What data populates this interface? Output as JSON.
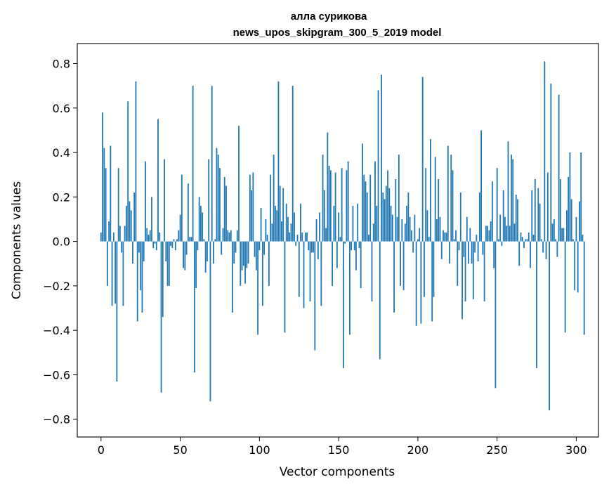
{
  "chart_data": {
    "type": "bar",
    "title": "алла сурикова",
    "subtitle": "news_upos_skipgram_300_5_2019 model",
    "xlabel": "Vector components",
    "ylabel": "Components values",
    "xlim": [
      -15,
      314
    ],
    "ylim": [
      -0.88,
      0.89
    ],
    "xticks": [
      0,
      50,
      100,
      150,
      200,
      250,
      300
    ],
    "xtick_labels": [
      "0",
      "50",
      "100",
      "150",
      "200",
      "250",
      "300"
    ],
    "yticks": [
      -0.8,
      -0.6,
      -0.4,
      -0.2,
      0.0,
      0.2,
      0.4,
      0.6,
      0.8
    ],
    "ytick_labels": [
      "−0.8",
      "−0.6",
      "−0.4",
      "−0.2",
      "0.0",
      "0.2",
      "0.4",
      "0.6",
      "0.8"
    ],
    "grid": false,
    "bar_color": "#1f77b4",
    "values": [
      0.04,
      0.58,
      0.42,
      0.33,
      -0.2,
      0.09,
      0.43,
      -0.29,
      0.04,
      -0.28,
      -0.63,
      0.33,
      0.07,
      -0.05,
      -0.29,
      0.07,
      0.16,
      0.63,
      0.18,
      0.14,
      -0.1,
      0.22,
      0.72,
      -0.36,
      -0.05,
      -0.22,
      -0.32,
      -0.09,
      0.36,
      0.06,
      0.03,
      0.05,
      0.2,
      -0.03,
      -0.01,
      -0.04,
      0.55,
      0.04,
      -0.68,
      -0.34,
      0.37,
      -0.09,
      -0.2,
      -0.2,
      -0.02,
      -0.03,
      0.01,
      -0.04,
      0.01,
      0.05,
      0.12,
      0.3,
      -0.12,
      -0.13,
      -0.06,
      0.26,
      0.02,
      0.02,
      0.7,
      -0.59,
      -0.21,
      -0.04,
      0.2,
      0.16,
      0.13,
      0.01,
      -0.14,
      -0.09,
      0.37,
      -0.72,
      0.7,
      -0.1,
      0.01,
      0.42,
      0.39,
      0.33,
      -0.06,
      0.06,
      0.29,
      0.25,
      0.05,
      0.04,
      0.05,
      -0.32,
      -0.1,
      -0.05,
      0.05,
      0.52,
      -0.2,
      -0.13,
      -0.11,
      -0.19,
      -0.12,
      -0.1,
      0.3,
      0.23,
      0.31,
      -0.07,
      -0.13,
      -0.42,
      -0.04,
      0.15,
      -0.29,
      -0.06,
      0.1,
      0.03,
      -0.2,
      0.3,
      0.08,
      0.39,
      0.16,
      0.14,
      0.72,
      0.25,
      0.09,
      0.24,
      -0.41,
      0.17,
      0.11,
      0.04,
      0.08,
      0.7,
      0.13,
      -0.02,
      0.03,
      -0.25,
      0.17,
      0.04,
      -0.3,
      0.04,
      0.04,
      -0.04,
      -0.27,
      -0.05,
      -0.05,
      -0.49,
      0.1,
      -0.08,
      0.13,
      -0.29,
      0.39,
      0.23,
      0.06,
      0.49,
      0.34,
      0.32,
      -0.2,
      0.16,
      0.31,
      -0.12,
      0.13,
      0.02,
      0.33,
      -0.57,
      -0.01,
      0.32,
      0.36,
      -0.42,
      -0.04,
      0.16,
      -0.04,
      -0.13,
      0.17,
      -0.03,
      -0.21,
      0.44,
      0.3,
      0.27,
      0.22,
      0.03,
      0.3,
      -0.27,
      0.08,
      0.36,
      0.16,
      0.68,
      -0.53,
      0.75,
      0.22,
      0.19,
      0.25,
      0.32,
      0.24,
      0.16,
      0.12,
      -0.32,
      0.28,
      0.11,
      0.39,
      -0.2,
      0.1,
      -0.22,
      0.08,
      0.16,
      0.22,
      0.11,
      0.05,
      -0.05,
      0.12,
      -0.38,
      0.01,
      0.06,
      -0.37,
      0.74,
      -0.25,
      0.33,
      0.14,
      0.02,
      0.46,
      -0.36,
      -0.25,
      0.38,
      0.1,
      0.28,
      0.11,
      -0.08,
      0.05,
      0.04,
      0.04,
      0.43,
      -0.1,
      0.39,
      0.32,
      0.01,
      0.05,
      -0.2,
      -0.04,
      0.22,
      -0.35,
      -0.07,
      -0.27,
      0.11,
      -0.1,
      0.06,
      -0.1,
      -0.26,
      -0.05,
      0.03,
      -0.09,
      0.22,
      0.5,
      -0.06,
      -0.27,
      0.07,
      0.07,
      0.05,
      0.09,
      0.27,
      -0.12,
      -0.66,
      0.33,
      0.01,
      0.12,
      -0.02,
      0.23,
      0.11,
      0.07,
      0.45,
      0.07,
      0.39,
      0.37,
      0.08,
      0.21,
      0.19,
      -0.11,
      0.04,
      0.02,
      -0.03,
      0.01,
      0.01,
      0.04,
      -0.12,
      0.23,
      0.03,
      0.28,
      -0.57,
      0.24,
      0.17,
      0.01,
      -0.05,
      0.81,
      -0.08,
      0.31,
      -0.76,
      0.71,
      0.08,
      0.1,
      0.01,
      -0.07,
      0.66,
      0.28,
      0.06,
      0.06,
      -0.41,
      0.14,
      0.29,
      0.4,
      0.19,
      0.01,
      -0.22,
      0.11,
      -0.23,
      0.18,
      0.4,
      0.03,
      -0.42
    ]
  }
}
